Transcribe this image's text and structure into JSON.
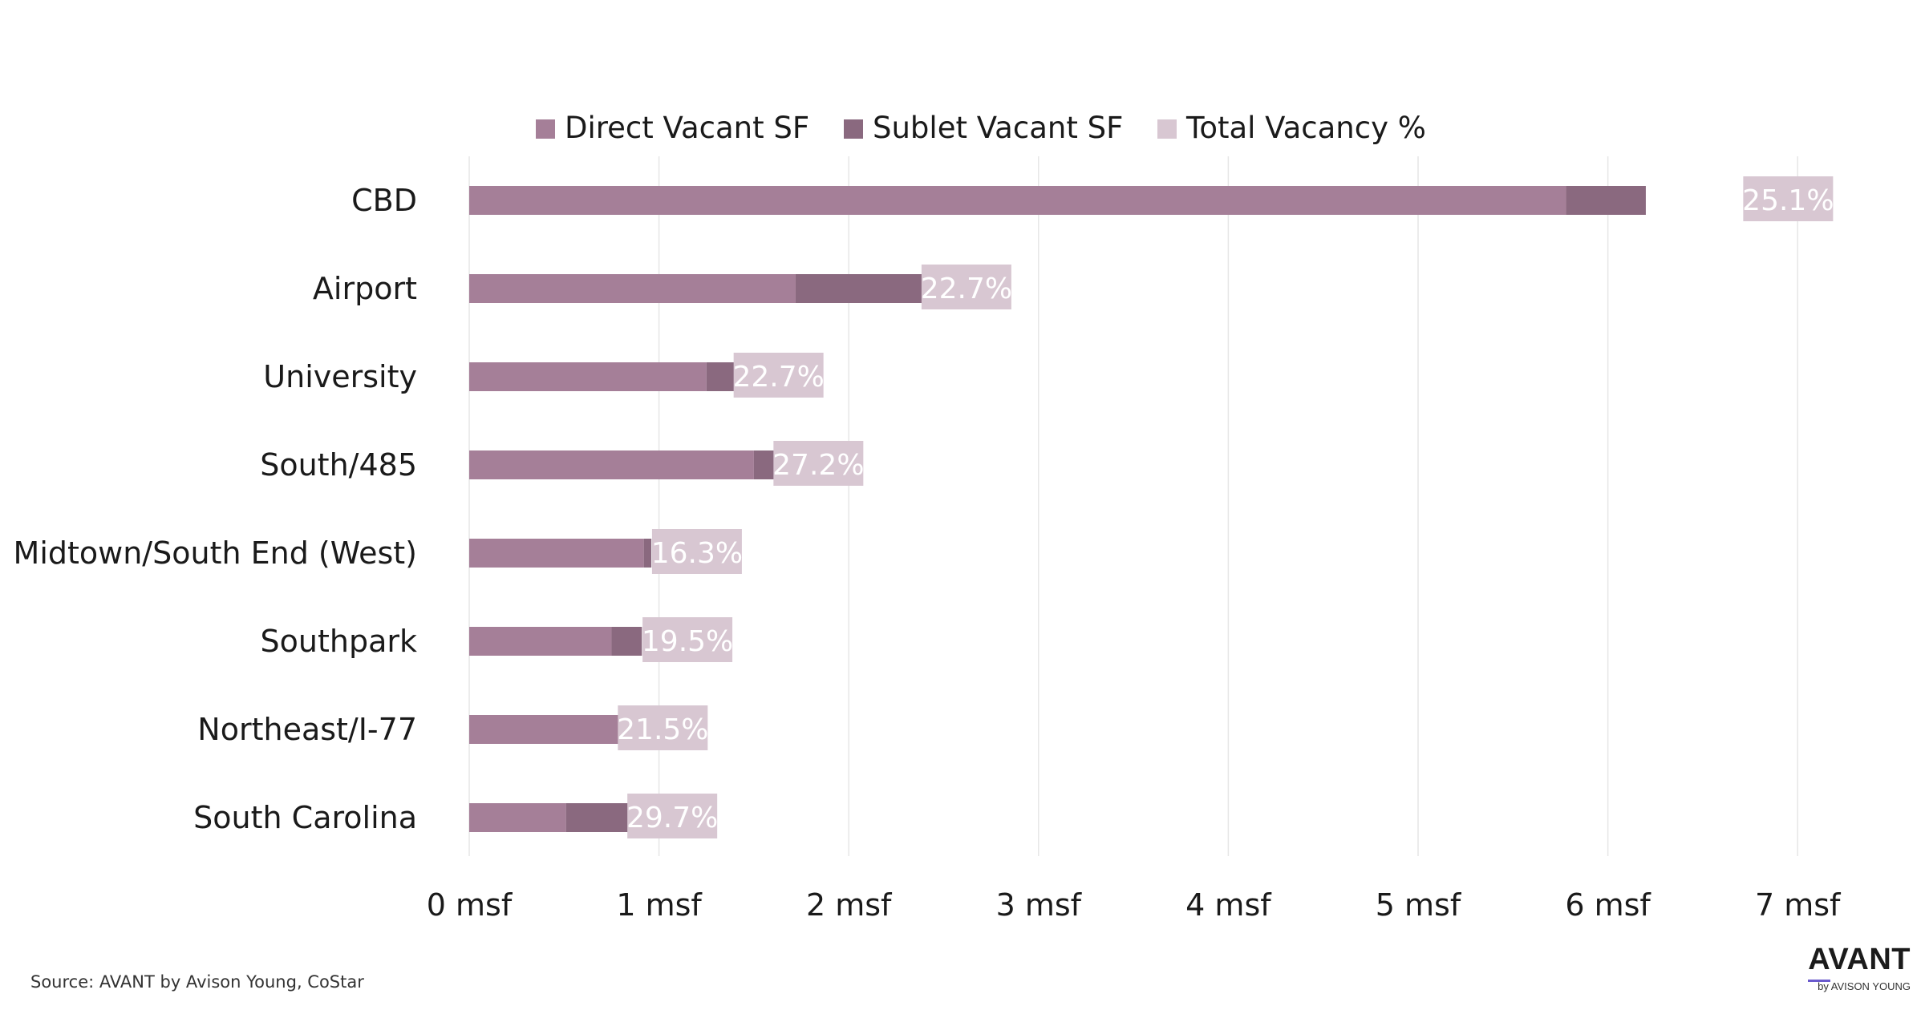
{
  "chart_data": {
    "type": "bar",
    "orientation": "horizontal",
    "stacked": true,
    "categories": [
      "CBD",
      "Airport",
      "University",
      "South/485",
      "Midtown/South End (West)",
      "Southpark",
      "Northeast/I-77",
      "South Carolina"
    ],
    "series": [
      {
        "name": "Direct Vacant SF",
        "color": "#a57f98",
        "values": [
          5.78,
          1.72,
          1.25,
          1.5,
          0.92,
          0.75,
          0.8,
          0.51
        ]
      },
      {
        "name": "Sublet Vacant SF",
        "color": "#8a697f",
        "values": [
          0.42,
          0.8,
          0.28,
          0.21,
          0.04,
          0.16,
          0.07,
          0.48
        ]
      }
    ],
    "vacancy": {
      "name": "Total Vacancy %",
      "color": "#d8c7d2",
      "labels": [
        "25.1%",
        "22.7%",
        "22.7%",
        "27.2%",
        "16.3%",
        "19.5%",
        "21.5%",
        "29.7%"
      ],
      "positions": [
        6.95,
        2.62,
        1.63,
        1.84,
        1.2,
        1.15,
        1.02,
        1.07
      ]
    },
    "xlim": [
      0,
      7
    ],
    "ticks": [
      0,
      1,
      2,
      3,
      4,
      5,
      6,
      7
    ],
    "tick_labels": [
      "0  msf",
      "1  msf",
      "2  msf",
      "3  msf",
      "4  msf",
      "5  msf",
      "6  msf",
      "7  msf"
    ],
    "grid": true,
    "legend_position": "top"
  },
  "footer": {
    "source": "Source: AVANT by Avison Young, CoStar",
    "logo_main": "AVANT",
    "logo_sub": "by AVISON YOUNG"
  }
}
